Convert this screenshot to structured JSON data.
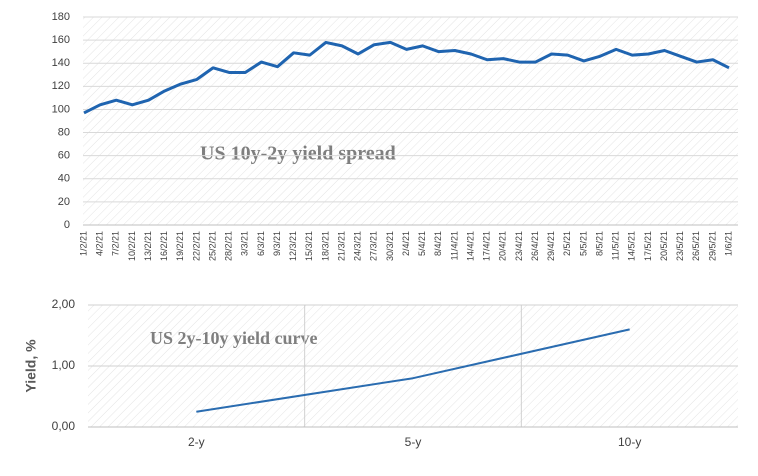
{
  "chart_data": [
    {
      "type": "line",
      "annotation": "US 10y-2y  yield spread",
      "categories": [
        "1/2/21",
        "4/2/21",
        "7/2/21",
        "10/2/21",
        "13/2/21",
        "16/2/21",
        "19/2/21",
        "22/2/21",
        "25/2/21",
        "28/2/21",
        "3/3/21",
        "6/3/21",
        "9/3/21",
        "12/3/21",
        "15/3/21",
        "18/3/21",
        "21/3/21",
        "24/3/21",
        "27/3/21",
        "30/3/21",
        "2/4/21",
        "5/4/21",
        "8/4/21",
        "11/4/21",
        "14/4/21",
        "17/4/21",
        "20/4/21",
        "23/4/21",
        "26/4/21",
        "29/4/21",
        "2/5/21",
        "5/5/21",
        "8/5/21",
        "11/5/21",
        "14/5/21",
        "17/5/21",
        "20/5/21",
        "23/5/21",
        "26/5/21",
        "29/5/21",
        "1/6/21"
      ],
      "values": [
        97,
        104,
        108,
        104,
        108,
        116,
        122,
        126,
        136,
        132,
        132,
        141,
        137,
        149,
        147,
        158,
        155,
        148,
        156,
        158,
        152,
        155,
        150,
        151,
        148,
        143,
        144,
        141,
        141,
        148,
        147,
        142,
        146,
        152,
        147,
        148,
        151,
        146,
        141,
        143,
        136
      ],
      "color": "#1f64b0",
      "ylim": [
        0,
        180
      ],
      "yticks": [
        0,
        20,
        40,
        60,
        80,
        100,
        120,
        140,
        160,
        180
      ],
      "grid": true
    },
    {
      "type": "line",
      "annotation": "US 2y-10y yield curve",
      "y_label": "Yield, %",
      "categories": [
        "2-y",
        "5-y",
        "10-y"
      ],
      "values": [
        0.25,
        0.8,
        1.6
      ],
      "color": "#2a6cb0",
      "ylim": [
        0,
        2
      ],
      "yticks": [
        {
          "value": 0,
          "label": "0,00"
        },
        {
          "value": 1,
          "label": "1,00"
        },
        {
          "value": 2,
          "label": "2,00"
        }
      ],
      "grid": true
    }
  ]
}
